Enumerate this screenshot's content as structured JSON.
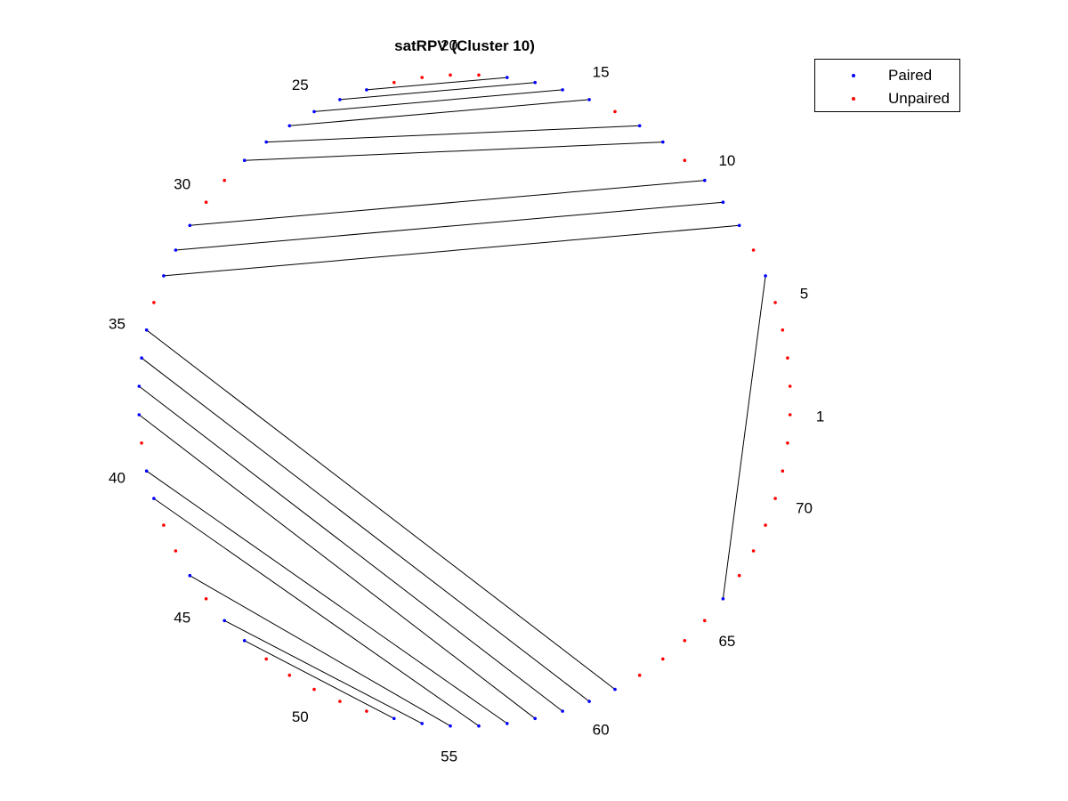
{
  "title": "satRPV (Cluster 10)",
  "legend": {
    "paired": {
      "label": "Paired",
      "color": "#0000ff"
    },
    "unpaired": {
      "label": "Unpaired",
      "color": "#ff0000"
    }
  },
  "arc_diagram": {
    "sequence_length": 72,
    "index_labels": [
      1,
      5,
      10,
      15,
      20,
      25,
      30,
      35,
      40,
      45,
      50,
      55,
      60,
      65,
      70
    ],
    "pairs": [
      [
        6,
        66
      ],
      [
        8,
        33
      ],
      [
        9,
        32
      ],
      [
        10,
        31
      ],
      [
        12,
        28
      ],
      [
        13,
        27
      ],
      [
        15,
        26
      ],
      [
        16,
        25
      ],
      [
        17,
        24
      ],
      [
        18,
        23
      ],
      [
        35,
        61
      ],
      [
        36,
        60
      ],
      [
        37,
        59
      ],
      [
        38,
        58
      ],
      [
        40,
        57
      ],
      [
        41,
        56
      ],
      [
        44,
        55
      ],
      [
        46,
        54
      ],
      [
        47,
        53
      ]
    ],
    "paired_color": "#0000ff",
    "unpaired_color": "#ff0000",
    "line_color": "#000000"
  }
}
